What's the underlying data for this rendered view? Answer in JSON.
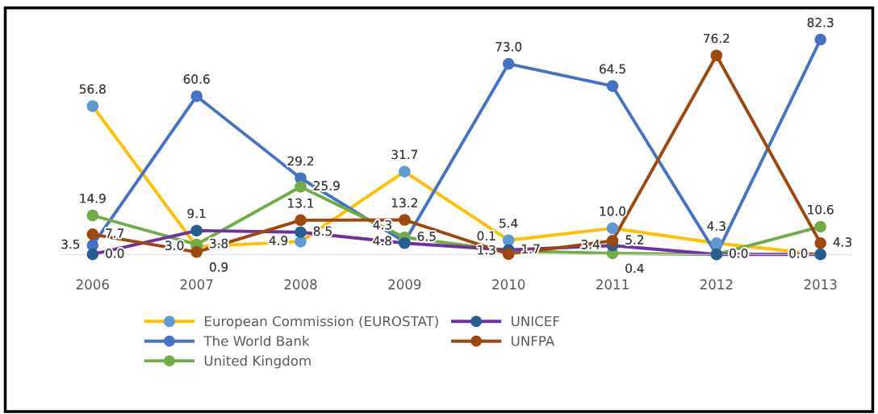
{
  "chart_data": {
    "type": "line",
    "categories": [
      "2006",
      "2007",
      "2008",
      "2009",
      "2010",
      "2011",
      "2012",
      "2013"
    ],
    "series": [
      {
        "name": "European Commission (EUROSTAT)",
        "color": "#ffc000",
        "colors": [
          "#5b9bd5",
          "#5b9bd5",
          "#5b9bd5",
          "#5b9bd5",
          "#5b9bd5",
          "#5b9bd5",
          "#5b9bd5",
          "#5b9bd5"
        ],
        "values": [
          56.8,
          3.0,
          4.9,
          31.7,
          5.4,
          10.0,
          4.3,
          0.0
        ],
        "value_labels": [
          "56.8",
          "3.0",
          "4.9",
          "31.7",
          "5.4",
          "10.0",
          "4.3",
          "0.0"
        ]
      },
      {
        "name": "The World Bank",
        "color": "#4472c4",
        "values": [
          3.5,
          60.6,
          29.2,
          4.8,
          73.0,
          64.5,
          0.0,
          82.3
        ],
        "value_labels": [
          "3.5",
          "60.6",
          "29.2",
          "4.8",
          "73.0",
          "64.5",
          "0.0",
          "82.3"
        ]
      },
      {
        "name": "United Kingdom",
        "color": "#70ad47",
        "values": [
          14.9,
          3.8,
          25.9,
          6.5,
          1.3,
          0.4,
          0.0,
          10.6
        ],
        "value_labels": [
          "14.9",
          "3.8",
          "25.9",
          "6.5",
          "1.3",
          "0.4",
          null,
          "10.6"
        ]
      },
      {
        "name": "UNICEF",
        "color": "#7030a0",
        "colors": [
          "#255e91",
          "#255e91",
          "#255e91",
          "#255e91",
          "#255e91",
          "#255e91",
          "#255e91",
          "#255e91"
        ],
        "values": [
          0.0,
          9.1,
          8.5,
          4.3,
          1.7,
          3.4,
          0.0,
          0.0
        ],
        "value_labels": [
          "0.0",
          "9.1",
          "8.5",
          "4.3",
          "1.7",
          "3.4",
          null,
          null
        ]
      },
      {
        "name": "UNFPA",
        "color": "#9e480e",
        "values": [
          7.7,
          0.9,
          13.1,
          13.2,
          0.1,
          5.2,
          76.2,
          4.3
        ],
        "value_labels": [
          "7.7",
          "0.9",
          "13.1",
          "13.2",
          "0.1",
          "5.2",
          "76.2",
          "4.3"
        ]
      }
    ],
    "data_labels": true,
    "marker": "circle",
    "line_style": "solid",
    "legend": "bottom",
    "grid": false
  }
}
